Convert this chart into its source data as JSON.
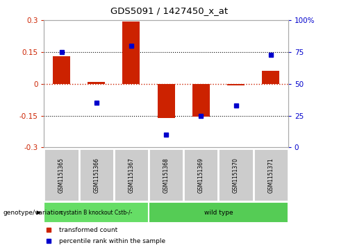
{
  "title": "GDS5091 / 1427450_x_at",
  "samples": [
    "GSM1151365",
    "GSM1151366",
    "GSM1151367",
    "GSM1151368",
    "GSM1151369",
    "GSM1151370",
    "GSM1151371"
  ],
  "red_bars": [
    0.13,
    0.008,
    0.295,
    -0.16,
    -0.155,
    -0.008,
    0.06
  ],
  "blue_dots": [
    75,
    35,
    80,
    10,
    25,
    33,
    73
  ],
  "ylim_left": [
    -0.3,
    0.3
  ],
  "ylim_right": [
    0,
    100
  ],
  "yticks_left": [
    -0.3,
    -0.15,
    0,
    0.15,
    0.3
  ],
  "yticks_right": [
    0,
    25,
    50,
    75,
    100
  ],
  "ytick_labels_left": [
    "-0.3",
    "-0.15",
    "0",
    "0.15",
    "0.3"
  ],
  "ytick_labels_right": [
    "0",
    "25",
    "50",
    "75",
    "100%"
  ],
  "hlines": [
    0.15,
    -0.15
  ],
  "bar_color": "#cc2200",
  "dot_color": "#0000cc",
  "zero_line_color": "#cc2200",
  "grid_line_color": "#000000",
  "groups": [
    {
      "label": "cystatin B knockout Cstb-/-",
      "n_samples": 3,
      "color": "#66dd66"
    },
    {
      "label": "wild type",
      "n_samples": 4,
      "color": "#55cc55"
    }
  ],
  "group_label": "genotype/variation",
  "legend_items": [
    {
      "label": "transformed count",
      "color": "#cc2200"
    },
    {
      "label": "percentile rank within the sample",
      "color": "#0000cc"
    }
  ],
  "bar_width": 0.5,
  "bar_color_dark": "#993300",
  "tick_color_left": "#cc2200",
  "tick_color_right": "#0000cc",
  "sample_box_color": "#cccccc",
  "sample_box_edge": "#ffffff"
}
